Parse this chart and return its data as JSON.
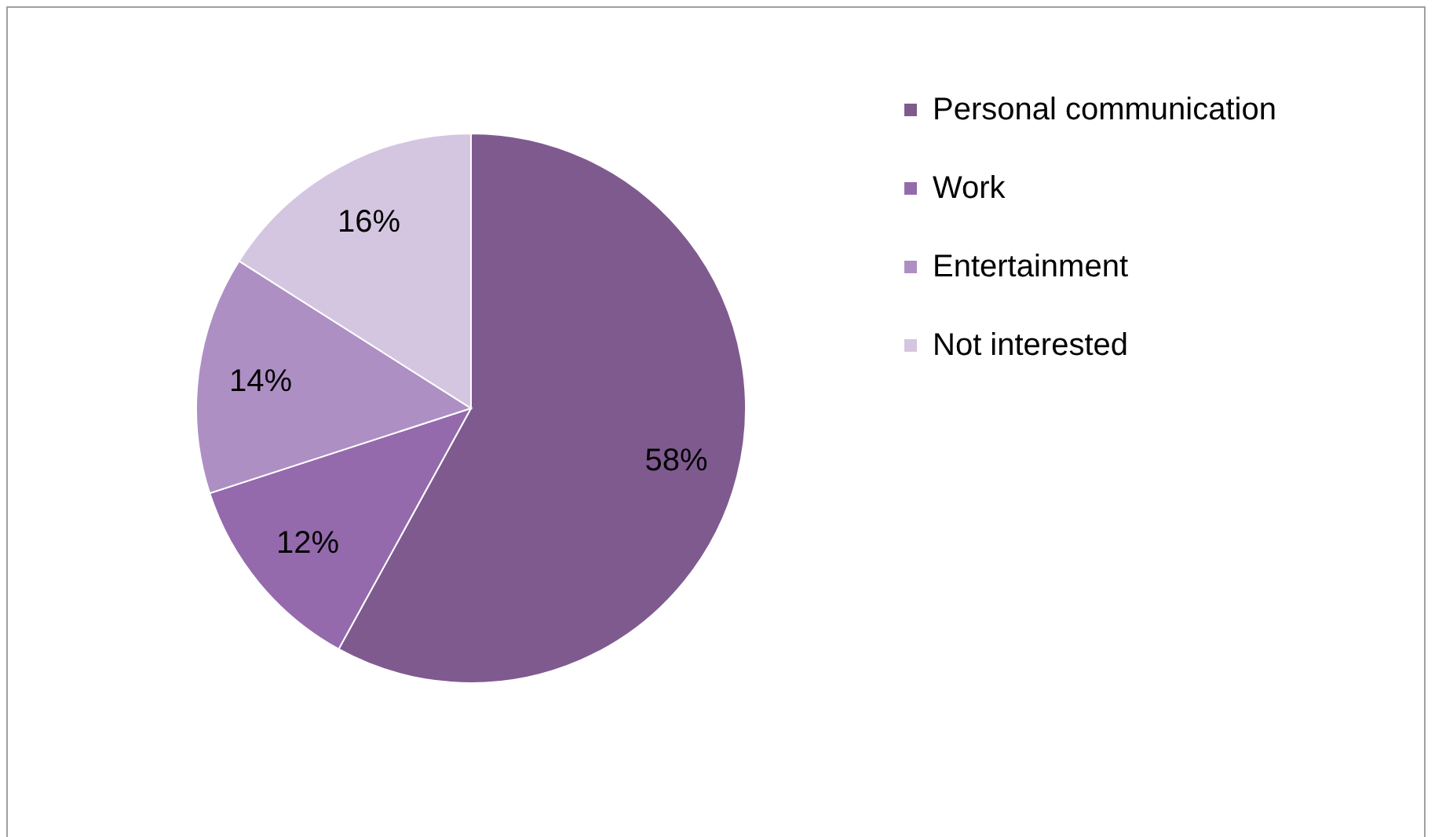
{
  "chart_data": {
    "type": "pie",
    "categories": [
      "Personal communication",
      "Work",
      "Entertainment",
      "Not interested"
    ],
    "values": [
      58,
      12,
      14,
      16
    ],
    "colors": [
      "#7f5a8f",
      "#946aad",
      "#ae8fc4",
      "#d4c6e0"
    ],
    "value_labels": [
      "58%",
      "12%",
      "14%",
      "16%"
    ],
    "legend": "right"
  }
}
